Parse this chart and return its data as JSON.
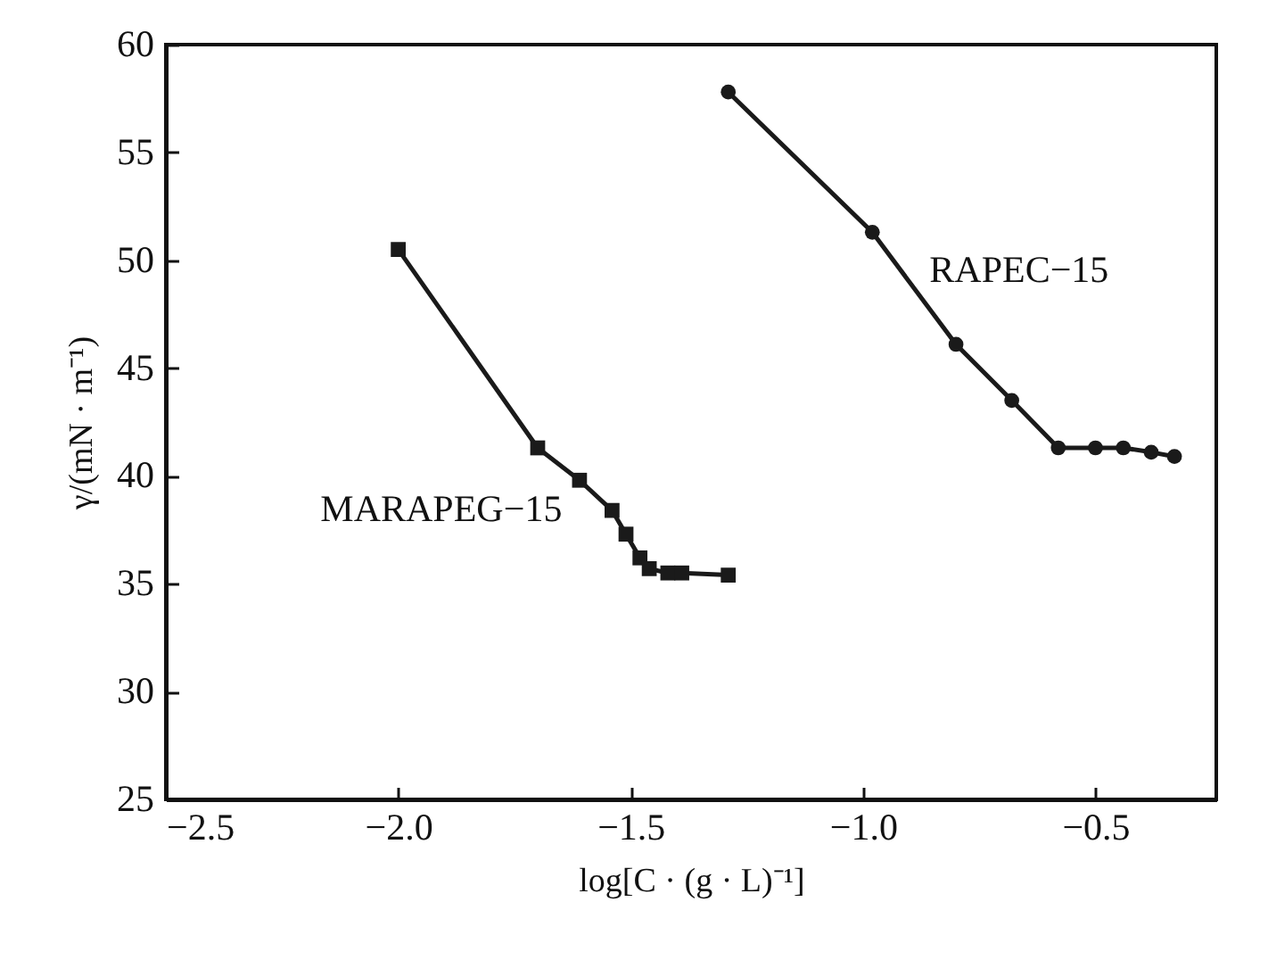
{
  "chart_data": {
    "type": "line",
    "xlabel": "log[C · (g · L)⁻¹]",
    "ylabel": "γ/(mN · m⁻¹)",
    "xlim": [
      -2.5,
      -0.24
    ],
    "xticks": [
      {
        "value": -2.5,
        "label": "−2.5"
      },
      {
        "value": -2.0,
        "label": "−2.0"
      },
      {
        "value": -1.5,
        "label": "−1.5"
      },
      {
        "value": -1.0,
        "label": "−1.0"
      },
      {
        "value": -0.5,
        "label": "−0.5"
      }
    ],
    "ylim": [
      25,
      60
    ],
    "yticks": [
      25,
      30,
      35,
      40,
      45,
      50,
      55,
      60
    ],
    "grid": false,
    "line_style": "solid",
    "series": [
      {
        "name": "MARAPEG−15",
        "color": "#1a1a1a",
        "marker": "square",
        "x": [
          -2.0,
          -1.7,
          -1.61,
          -1.54,
          -1.51,
          -1.48,
          -1.46,
          -1.42,
          -1.39,
          -1.29
        ],
        "values": [
          50.5,
          41.3,
          39.8,
          38.4,
          37.3,
          36.2,
          35.7,
          35.5,
          35.5,
          35.4
        ]
      },
      {
        "name": "RAPEC−15",
        "color": "#1a1a1a",
        "marker": "circle",
        "x": [
          -1.29,
          -0.98,
          -0.8,
          -0.68,
          -0.58,
          -0.5,
          -0.44,
          -0.38,
          -0.33
        ],
        "values": [
          57.8,
          51.3,
          46.1,
          43.5,
          41.3,
          41.3,
          41.3,
          41.1,
          40.9
        ]
      }
    ]
  }
}
